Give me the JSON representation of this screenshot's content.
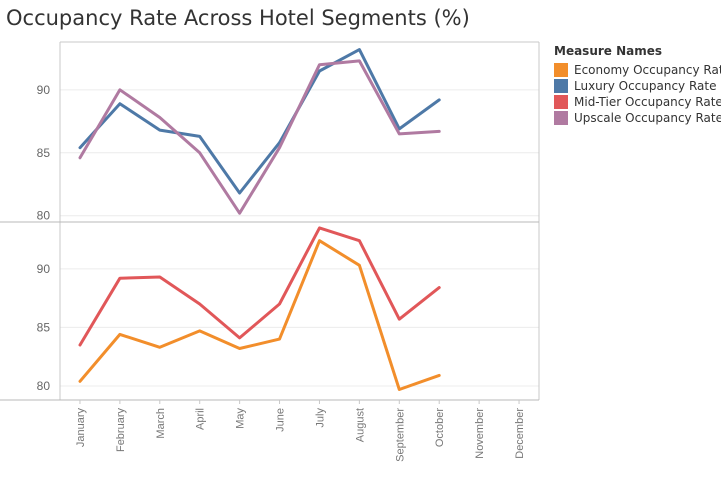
{
  "title": "Occupancy Rate Across Hotel Segments (%)",
  "legend": {
    "title": "Measure Names",
    "placement": "right",
    "items": [
      {
        "label": "Economy Occupancy Rate",
        "color": "#f28e2b"
      },
      {
        "label": "Luxury Occupancy Rate",
        "color": "#4e79a7"
      },
      {
        "label": "Mid-Tier Occupancy Rate",
        "color": "#e15759"
      },
      {
        "label": "Upscale Occupancy Rate",
        "color": "#b07aa1"
      }
    ]
  },
  "chart_data": [
    {
      "type": "line",
      "panel": "top",
      "categories": [
        "January",
        "February",
        "March",
        "April",
        "May",
        "June",
        "July",
        "August",
        "September",
        "October",
        "November",
        "December"
      ],
      "ylim": [
        79.5,
        93.8
      ],
      "yticks": [
        80,
        85,
        90
      ],
      "grid": true,
      "series": [
        {
          "name": "Luxury Occupancy Rate",
          "color": "#4e79a7",
          "values": [
            85.4,
            88.9,
            86.8,
            86.3,
            81.8,
            85.8,
            91.5,
            93.2,
            86.9,
            89.2,
            null,
            null
          ]
        },
        {
          "name": "Upscale Occupancy Rate",
          "color": "#b07aa1",
          "values": [
            84.6,
            90.0,
            87.8,
            85.0,
            80.2,
            85.4,
            92.0,
            92.3,
            86.5,
            86.7,
            null,
            null
          ]
        }
      ]
    },
    {
      "type": "line",
      "panel": "bottom",
      "categories": [
        "January",
        "February",
        "March",
        "April",
        "May",
        "June",
        "July",
        "August",
        "September",
        "October",
        "November",
        "December"
      ],
      "ylim": [
        78.8,
        94.0
      ],
      "yticks": [
        80,
        85,
        90
      ],
      "grid": true,
      "series": [
        {
          "name": "Economy Occupancy Rate",
          "color": "#f28e2b",
          "values": [
            80.4,
            84.4,
            83.3,
            84.7,
            83.2,
            84.0,
            92.4,
            90.3,
            79.7,
            80.9,
            null,
            null
          ]
        },
        {
          "name": "Mid-Tier Occupancy Rate",
          "color": "#e15759",
          "values": [
            83.5,
            89.2,
            89.3,
            87.0,
            84.1,
            87.0,
            93.5,
            92.4,
            85.7,
            88.4,
            null,
            null
          ]
        }
      ]
    }
  ]
}
